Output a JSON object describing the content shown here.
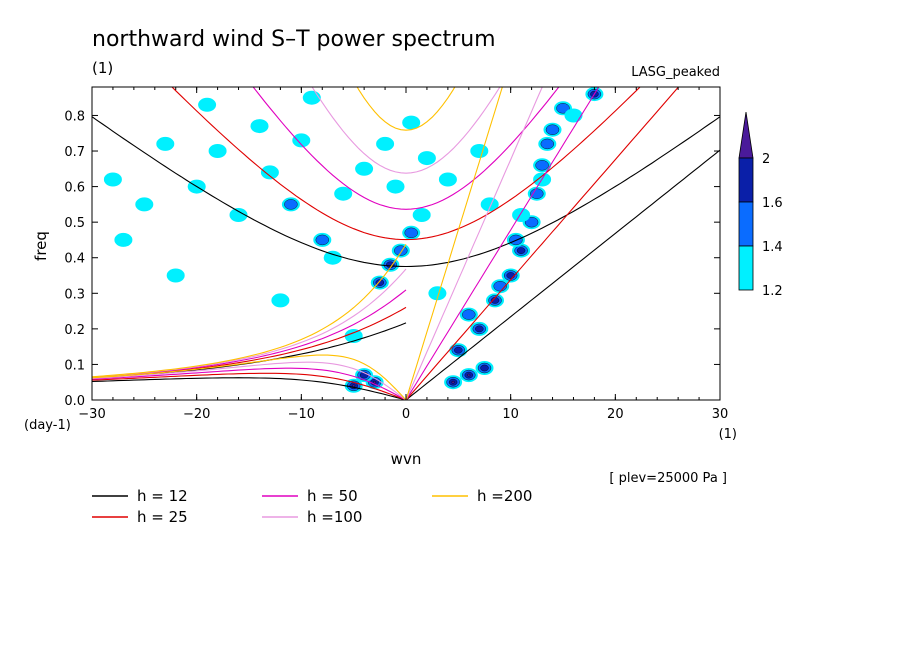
{
  "chart_data": {
    "type": "contour",
    "title": "northward wind S–T power spectrum",
    "subtitle_left": "(1)",
    "subtitle_right": "LASG_peaked",
    "xlabel": "wvn",
    "ylabel": "freq",
    "x_unit": "(1)",
    "y_unit": "(day-1)",
    "annotation": "[ plev=25000 Pa ]",
    "xlim": [
      -30,
      30
    ],
    "ylim": [
      0,
      0.88
    ],
    "x_ticks": [
      -30,
      -20,
      -10,
      0,
      10,
      20,
      30
    ],
    "y_ticks": [
      0.0,
      0.1,
      0.2,
      0.3,
      0.4,
      0.5,
      0.6,
      0.7,
      0.8
    ],
    "x_tick_labels": [
      "−30",
      "−20",
      "−10",
      "0",
      "10",
      "20",
      "30"
    ],
    "y_tick_labels": [
      "0.0",
      "0.1",
      "0.2",
      "0.3",
      "0.4",
      "0.5",
      "0.6",
      "0.7",
      "0.8"
    ],
    "colorbar": {
      "levels": [
        1.2,
        1.4,
        1.6,
        2
      ],
      "labels": [
        "1.2",
        "1.4",
        "1.6",
        "2"
      ],
      "colors": [
        "#00f0ff",
        "#0a6cff",
        "#0a1fa8",
        "#4a1a9a"
      ]
    },
    "dispersion_curves": [
      {
        "h": 12,
        "label": "h = 12",
        "color": "#000000"
      },
      {
        "h": 25,
        "label": "h = 25",
        "color": "#e00000"
      },
      {
        "h": 50,
        "label": "h = 50",
        "color": "#e000c0"
      },
      {
        "h": 100,
        "label": "h =100",
        "color": "#e89ae0"
      },
      {
        "h": 200,
        "label": "h =200",
        "color": "#ffc000"
      }
    ],
    "blobs": [
      {
        "x": 6,
        "y": 0.07,
        "level": 4
      },
      {
        "x": 4.5,
        "y": 0.05,
        "level": 4
      },
      {
        "x": 7.5,
        "y": 0.09,
        "level": 3
      },
      {
        "x": 5,
        "y": 0.14,
        "level": 3
      },
      {
        "x": 7,
        "y": 0.2,
        "level": 3
      },
      {
        "x": 8.5,
        "y": 0.28,
        "level": 3
      },
      {
        "x": 10,
        "y": 0.35,
        "level": 3
      },
      {
        "x": 11,
        "y": 0.42,
        "level": 3
      },
      {
        "x": 12,
        "y": 0.5,
        "level": 2
      },
      {
        "x": 6,
        "y": 0.24,
        "level": 2
      },
      {
        "x": 9,
        "y": 0.32,
        "level": 2
      },
      {
        "x": 10.5,
        "y": 0.45,
        "level": 2
      },
      {
        "x": 12.5,
        "y": 0.58,
        "level": 2
      },
      {
        "x": 13,
        "y": 0.66,
        "level": 2
      },
      {
        "x": 13.5,
        "y": 0.72,
        "level": 2
      },
      {
        "x": 14,
        "y": 0.76,
        "level": 2
      },
      {
        "x": 15,
        "y": 0.82,
        "level": 2
      },
      {
        "x": 18,
        "y": 0.86,
        "level": 3
      },
      {
        "x": 13,
        "y": 0.62,
        "level": 1
      },
      {
        "x": 16,
        "y": 0.8,
        "level": 1
      },
      {
        "x": 11,
        "y": 0.52,
        "level": 1
      },
      {
        "x": -3,
        "y": 0.05,
        "level": 4
      },
      {
        "x": -5,
        "y": 0.04,
        "level": 4
      },
      {
        "x": -4,
        "y": 0.07,
        "level": 3
      },
      {
        "x": -2.5,
        "y": 0.33,
        "level": 3
      },
      {
        "x": -1.5,
        "y": 0.38,
        "level": 3
      },
      {
        "x": -0.5,
        "y": 0.42,
        "level": 2
      },
      {
        "x": 0.5,
        "y": 0.47,
        "level": 2
      },
      {
        "x": 1.5,
        "y": 0.52,
        "level": 1
      },
      {
        "x": -8,
        "y": 0.45,
        "level": 2
      },
      {
        "x": -11,
        "y": 0.55,
        "level": 2
      },
      {
        "x": -5,
        "y": 0.18,
        "level": 1
      },
      {
        "x": -10,
        "y": 0.73,
        "level": 1
      },
      {
        "x": -14,
        "y": 0.77,
        "level": 1
      },
      {
        "x": -20,
        "y": 0.6,
        "level": 1
      },
      {
        "x": -25,
        "y": 0.55,
        "level": 1
      },
      {
        "x": -22,
        "y": 0.35,
        "level": 1
      },
      {
        "x": -27,
        "y": 0.45,
        "level": 1
      },
      {
        "x": -18,
        "y": 0.7,
        "level": 1
      },
      {
        "x": -4,
        "y": 0.65,
        "level": 1
      },
      {
        "x": -2,
        "y": 0.72,
        "level": 1
      },
      {
        "x": -6,
        "y": 0.58,
        "level": 1
      },
      {
        "x": -16,
        "y": 0.52,
        "level": 1
      },
      {
        "x": -12,
        "y": 0.28,
        "level": 1
      },
      {
        "x": -7,
        "y": 0.4,
        "level": 1
      },
      {
        "x": -19,
        "y": 0.83,
        "level": 1
      },
      {
        "x": -23,
        "y": 0.72,
        "level": 1
      },
      {
        "x": -9,
        "y": 0.85,
        "level": 1
      },
      {
        "x": 2,
        "y": 0.68,
        "level": 1
      },
      {
        "x": 4,
        "y": 0.62,
        "level": 1
      },
      {
        "x": 3,
        "y": 0.3,
        "level": 1
      },
      {
        "x": -1,
        "y": 0.6,
        "level": 1
      },
      {
        "x": 0.5,
        "y": 0.78,
        "level": 1
      },
      {
        "x": -13,
        "y": 0.64,
        "level": 1
      },
      {
        "x": 8,
        "y": 0.55,
        "level": 1
      },
      {
        "x": 7,
        "y": 0.7,
        "level": 1
      },
      {
        "x": -28,
        "y": 0.62,
        "level": 1
      }
    ]
  },
  "legend": {
    "h12": "h = 12",
    "h25": "h = 25",
    "h50": "h = 50",
    "h100": "h =100",
    "h200": "h =200"
  }
}
